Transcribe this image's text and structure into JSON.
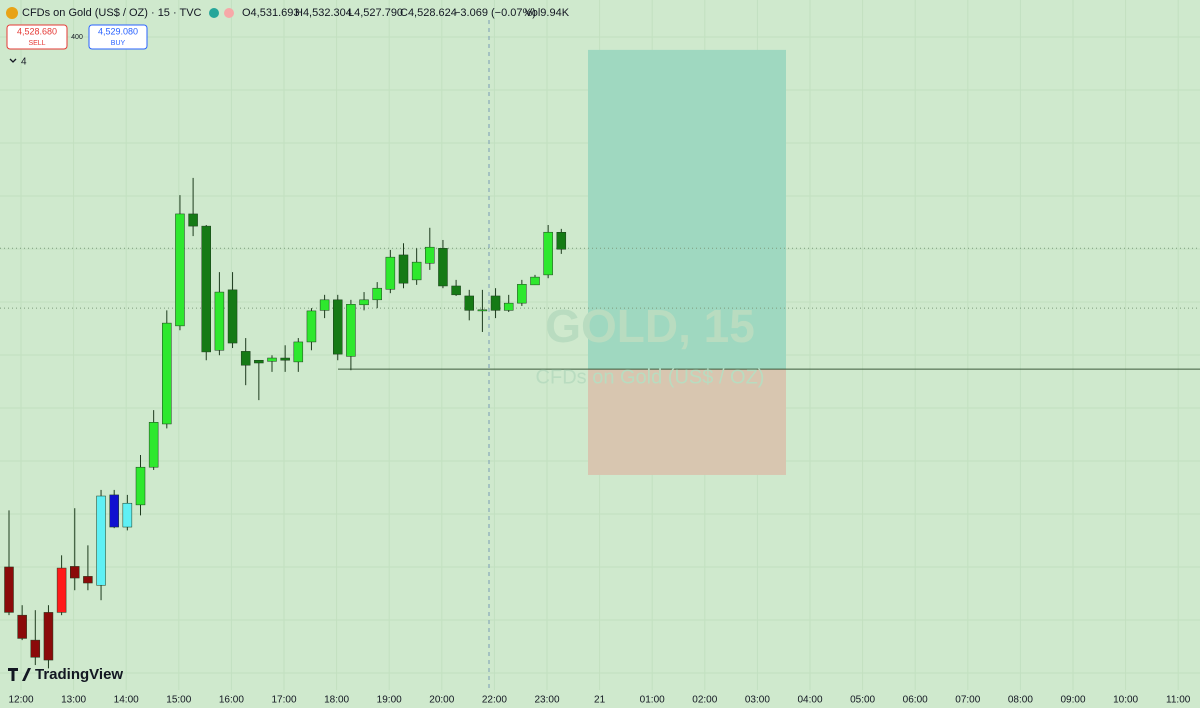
{
  "chart_data": {
    "type": "candlestick",
    "header": {
      "symbol": "CFDs on Gold (US$ / OZ) · 15 · TVC",
      "open": "O4,531.693",
      "high": "H4,532.304",
      "low": "L4,527.790",
      "close": "C4,528.624",
      "change": "−3.069 (−0.07%)",
      "volume": "Vol9.94K"
    },
    "sell": {
      "price": "4,528.680",
      "label": "SELL"
    },
    "spread": "400",
    "buy": {
      "price": "4,529.080",
      "label": "BUY"
    },
    "indicators_count": "4",
    "watermark": {
      "title": "GOLD, 15",
      "subtitle": "CFDs on Gold (US$ / OZ)"
    },
    "logo": "TradingView",
    "categories": [
      "12:00",
      "13:00",
      "14:00",
      "15:00",
      "16:00",
      "17:00",
      "18:00",
      "19:00",
      "20:00",
      "22:00",
      "23:00",
      "21",
      "01:00",
      "02:00",
      "03:00",
      "04:00",
      "05:00",
      "06:00",
      "07:00",
      "08:00",
      "09:00",
      "10:00",
      "11:00"
    ],
    "ylim": [
      4450,
      4573.6
    ],
    "candles": [
      {
        "open": 4471.3,
        "high": 4481.5,
        "low": 4462.6,
        "close": 4463.1,
        "color": "#8b0a0a"
      },
      {
        "open": 4462.6,
        "high": 4464.4,
        "low": 4458.1,
        "close": 4458.4,
        "color": "#8b0a0a"
      },
      {
        "open": 4458.1,
        "high": 4463.5,
        "low": 4453.6,
        "close": 4455.0,
        "color": "#8b0a0a"
      },
      {
        "open": 4463.1,
        "high": 4464.4,
        "low": 4453.0,
        "close": 4454.5,
        "color": "#8b0a0a"
      },
      {
        "open": 4463.1,
        "high": 4473.4,
        "low": 4462.6,
        "close": 4471.1,
        "color": "#ff1a1a"
      },
      {
        "open": 4469.3,
        "high": 4481.9,
        "low": 4467.1,
        "close": 4471.4,
        "color": "#8b0a0a"
      },
      {
        "open": 4469.6,
        "high": 4475.2,
        "low": 4467.1,
        "close": 4468.4,
        "color": "#8b0a0a"
      },
      {
        "open": 4468.0,
        "high": 4485.2,
        "low": 4465.3,
        "close": 4484.1,
        "color": "#5ff0f5"
      },
      {
        "open": 4484.3,
        "high": 4485.2,
        "low": 4478.3,
        "close": 4478.5,
        "color": "#1010d0"
      },
      {
        "open": 4478.5,
        "high": 4484.3,
        "low": 4477.9,
        "close": 4482.8,
        "color": "#5ff0f5"
      },
      {
        "open": 4482.5,
        "high": 4491.5,
        "low": 4480.6,
        "close": 4489.3,
        "color": "#2ee82e"
      },
      {
        "open": 4489.3,
        "high": 4499.6,
        "low": 4488.8,
        "close": 4497.4,
        "color": "#2ee82e"
      },
      {
        "open": 4497.1,
        "high": 4517.6,
        "low": 4496.3,
        "close": 4515.3,
        "color": "#2ee82e"
      },
      {
        "open": 4514.8,
        "high": 4538.4,
        "low": 4514.0,
        "close": 4535.0,
        "color": "#2ee82e"
      },
      {
        "open": 4535.0,
        "high": 4541.5,
        "low": 4531.0,
        "close": 4532.8,
        "color": "#157a15"
      },
      {
        "open": 4532.8,
        "high": 4533.0,
        "low": 4508.6,
        "close": 4510.1,
        "color": "#157a15"
      },
      {
        "open": 4510.4,
        "high": 4524.5,
        "low": 4509.5,
        "close": 4520.9,
        "color": "#2ee82e"
      },
      {
        "open": 4521.3,
        "high": 4524.5,
        "low": 4510.8,
        "close": 4511.7,
        "color": "#157a15"
      },
      {
        "open": 4510.2,
        "high": 4512.6,
        "low": 4504.1,
        "close": 4507.7,
        "color": "#157a15"
      },
      {
        "open": 4508.6,
        "high": 4508.6,
        "low": 4501.4,
        "close": 4508.1,
        "color": "#157a15"
      },
      {
        "open": 4508.4,
        "high": 4509.5,
        "low": 4506.5,
        "close": 4509.0,
        "color": "#2ee82e"
      },
      {
        "open": 4509.0,
        "high": 4511.3,
        "low": 4506.5,
        "close": 4508.6,
        "color": "#157a15"
      },
      {
        "open": 4508.3,
        "high": 4512.6,
        "low": 4506.5,
        "close": 4511.9,
        "color": "#2ee82e"
      },
      {
        "open": 4511.9,
        "high": 4518.0,
        "low": 4510.4,
        "close": 4517.5,
        "color": "#2ee82e"
      },
      {
        "open": 4517.6,
        "high": 4520.4,
        "low": 4516.2,
        "close": 4519.5,
        "color": "#2ee82e"
      },
      {
        "open": 4519.5,
        "high": 4520.4,
        "low": 4508.6,
        "close": 4509.7,
        "color": "#157a15"
      },
      {
        "open": 4509.3,
        "high": 4519.5,
        "low": 4506.8,
        "close": 4518.7,
        "color": "#2ee82e"
      },
      {
        "open": 4518.6,
        "high": 4520.9,
        "low": 4517.6,
        "close": 4519.5,
        "color": "#2ee82e"
      },
      {
        "open": 4519.5,
        "high": 4522.7,
        "low": 4518.0,
        "close": 4521.6,
        "color": "#2ee82e"
      },
      {
        "open": 4521.4,
        "high": 4528.5,
        "low": 4520.7,
        "close": 4527.2,
        "color": "#2ee82e"
      },
      {
        "open": 4527.6,
        "high": 4529.7,
        "low": 4521.6,
        "close": 4522.5,
        "color": "#157a15"
      },
      {
        "open": 4523.1,
        "high": 4528.8,
        "low": 4522.2,
        "close": 4526.3,
        "color": "#2ee82e"
      },
      {
        "open": 4526.1,
        "high": 4532.5,
        "low": 4524.9,
        "close": 4529.0,
        "color": "#2ee82e"
      },
      {
        "open": 4528.8,
        "high": 4530.3,
        "low": 4521.6,
        "close": 4522.0,
        "color": "#157a15"
      },
      {
        "open": 4522.0,
        "high": 4523.1,
        "low": 4520.2,
        "close": 4520.4,
        "color": "#157a15"
      },
      {
        "open": 4520.2,
        "high": 4521.3,
        "low": 4515.8,
        "close": 4517.6,
        "color": "#157a15"
      },
      {
        "open": 4517.5,
        "high": 4521.3,
        "low": 4513.7,
        "close": 4517.7,
        "color": "#2ee82e"
      },
      {
        "open": 4520.2,
        "high": 4521.6,
        "low": 4516.2,
        "close": 4517.6,
        "color": "#157a15"
      },
      {
        "open": 4517.6,
        "high": 4520.4,
        "low": 4517.3,
        "close": 4518.9,
        "color": "#2ee82e"
      },
      {
        "open": 4518.9,
        "high": 4523.1,
        "low": 4518.4,
        "close": 4522.3,
        "color": "#2ee82e"
      },
      {
        "open": 4522.2,
        "high": 4524.0,
        "low": 4522.2,
        "close": 4523.6,
        "color": "#2ee82e"
      },
      {
        "open": 4524.0,
        "high": 4533.0,
        "low": 4523.4,
        "close": 4531.7,
        "color": "#2ee82e"
      },
      {
        "open": 4531.693,
        "high": 4532.304,
        "low": 4527.79,
        "close": 4528.624,
        "color": "#157a15"
      }
    ],
    "levels": [
      4528.8,
      4518.0
    ],
    "position": {
      "target": 4564.6,
      "entry": 4507.0,
      "stop": 4487.9,
      "target_color": "#9fd8c0",
      "stop_color": "#d8c6b0"
    }
  }
}
